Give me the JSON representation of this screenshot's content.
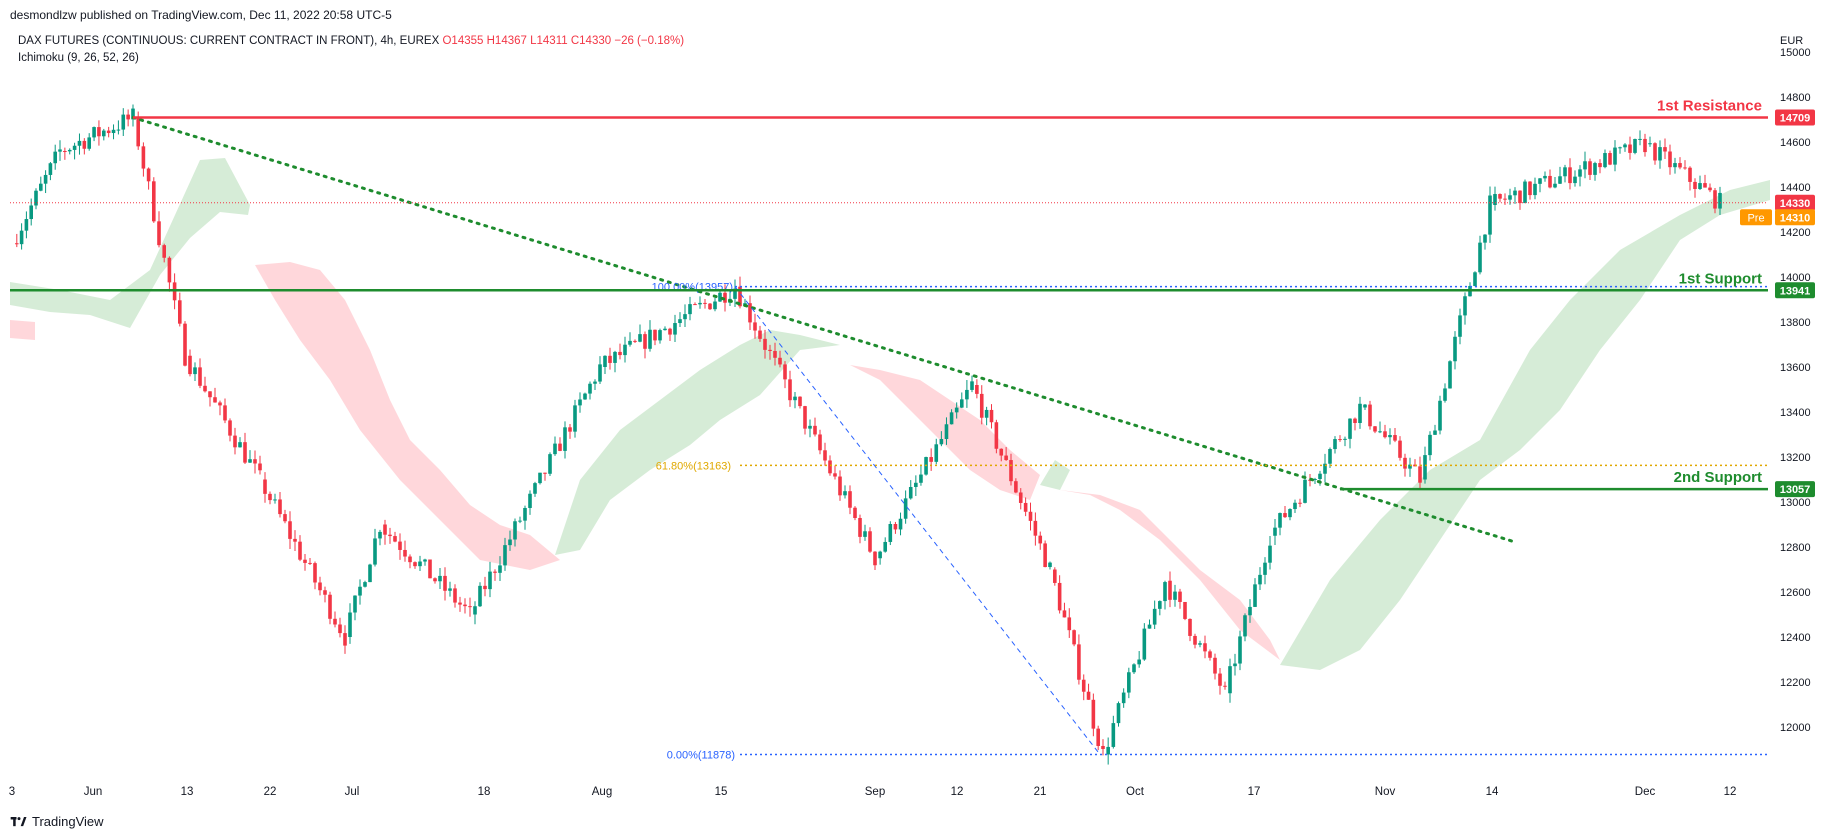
{
  "header": {
    "published": "desmondlzw published on TradingView.com, Dec 11, 2022 20:58 UTC-5",
    "symbol": "DAX FUTURES (CONTINUOUS: CURRENT CONTRACT IN FRONT), 4h, EUREX",
    "ohlc": {
      "o": "O14355",
      "h": "H14367",
      "l": "L14311",
      "c": "C14330",
      "chg": "−26 (−0.18%)"
    },
    "indicator": "Ichimoku (9, 26, 52, 26)"
  },
  "footer": {
    "brand": "TradingView"
  },
  "colors": {
    "up": "#089981",
    "down": "#f23645",
    "resistance": "#f23645",
    "support": "#1e8c2e",
    "trendline": "#1e8c2e",
    "fib": "#2962ff",
    "fib618": "#e0a800",
    "cloud_bull": "#c8e6c9",
    "cloud_bear": "#ffcdd2",
    "pre": "#ff9800"
  },
  "chart_data": {
    "type": "line",
    "title": "",
    "currency": "EUR",
    "ylim": [
      11850,
      15050
    ],
    "y_ticks": [
      12000,
      12200,
      12400,
      12600,
      12800,
      13000,
      13200,
      13400,
      13600,
      13800,
      14000,
      14200,
      14400,
      14600,
      14800,
      15000
    ],
    "x_ticks": [
      "3",
      "Jun",
      "13",
      "22",
      "Jul",
      "18",
      "Aug",
      "15",
      "Sep",
      "12",
      "21",
      "Oct",
      "17",
      "Nov",
      "14",
      "Dec",
      "12"
    ],
    "price_path": [
      {
        "x": "3",
        "y": 14150
      },
      {
        "x": "Jun",
        "y": 14560
      },
      {
        "x": "Jun",
        "y": 14709
      },
      {
        "x": "13",
        "y": 13650
      },
      {
        "x": "22",
        "y": 13100
      },
      {
        "x": "Jul",
        "y": 12400
      },
      {
        "x": "Jul",
        "y": 12900
      },
      {
        "x": "18",
        "y": 12500
      },
      {
        "x": "Aug",
        "y": 13600
      },
      {
        "x": "15",
        "y": 13957
      },
      {
        "x": "Sep",
        "y": 12750
      },
      {
        "x": "12",
        "y": 13520
      },
      {
        "x": "21",
        "y": 12700
      },
      {
        "x": "Oct",
        "y": 11878
      },
      {
        "x": "Oct",
        "y": 12650
      },
      {
        "x": "17",
        "y": 12150
      },
      {
        "x": "17",
        "y": 12850
      },
      {
        "x": "Nov",
        "y": 13420
      },
      {
        "x": "Nov",
        "y": 13100
      },
      {
        "x": "14",
        "y": 14320
      },
      {
        "x": "Dec",
        "y": 14590
      },
      {
        "x": "12",
        "y": 14330
      }
    ],
    "levels": [
      {
        "label": "1st Resistance",
        "value": 14709,
        "tag": "14709",
        "kind": "resistance"
      },
      {
        "label": "1st Support",
        "value": 13941,
        "tag": "13941",
        "kind": "support"
      },
      {
        "label": "2nd Support",
        "value": 13057,
        "tag": "13057",
        "kind": "support"
      }
    ],
    "fib": [
      {
        "label": "100.00%(13957)",
        "value": 13957
      },
      {
        "label": "61.80%(13163)",
        "value": 13163
      },
      {
        "label": "0.00%(11878)",
        "value": 11878
      }
    ],
    "last_price": {
      "value": 14330,
      "tag": "14330"
    },
    "pre_price": {
      "value": 14310,
      "tag": "14310",
      "label": "Pre"
    }
  }
}
